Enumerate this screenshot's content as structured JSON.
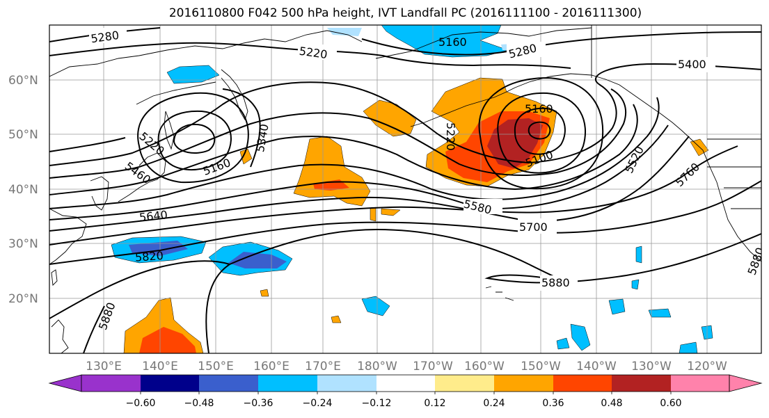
{
  "title": "2016110800 F042 500 hPa height, IVT Landfall PC (2016111100 - 2016111300)",
  "lat_labels": [
    "60°N",
    "50°N",
    "40°N",
    "30°N",
    "20°N"
  ],
  "lon_labels": [
    "130°E",
    "140°E",
    "150°E",
    "160°E",
    "170°E",
    "180°W",
    "170°W",
    "160°W",
    "150°W",
    "140°W",
    "130°W",
    "120°W"
  ],
  "contour_labels": [
    "5280",
    "5220",
    "5160",
    "5280",
    "5400",
    "5160",
    "5220",
    "5340",
    "5160",
    "5220",
    "5460",
    "5100",
    "5520",
    "5760",
    "5580",
    "5640",
    "5700",
    "5820",
    "5880",
    "5880",
    "5880"
  ],
  "colorbar": {
    "tick_labels": [
      "−0.60",
      "−0.48",
      "−0.36",
      "−0.24",
      "−0.12",
      "0.12",
      "0.24",
      "0.36",
      "0.48",
      "0.60"
    ],
    "colors": [
      "#9932cc",
      "#00008b",
      "#3a5fcd",
      "#00bfff",
      "#b0e2ff",
      "#ffffff",
      "#ffec8b",
      "#ffa500",
      "#ff4500",
      "#b22222",
      "#ff82ab"
    ]
  },
  "colors": {
    "neg_strong": "#3a5fcd",
    "neg_mid": "#00bfff",
    "neg_weak": "#b0e2ff",
    "pos_weak": "#ffec8b",
    "pos_mid": "#ffa500",
    "pos_strong": "#ff4500",
    "pos_max": "#b22222"
  }
}
